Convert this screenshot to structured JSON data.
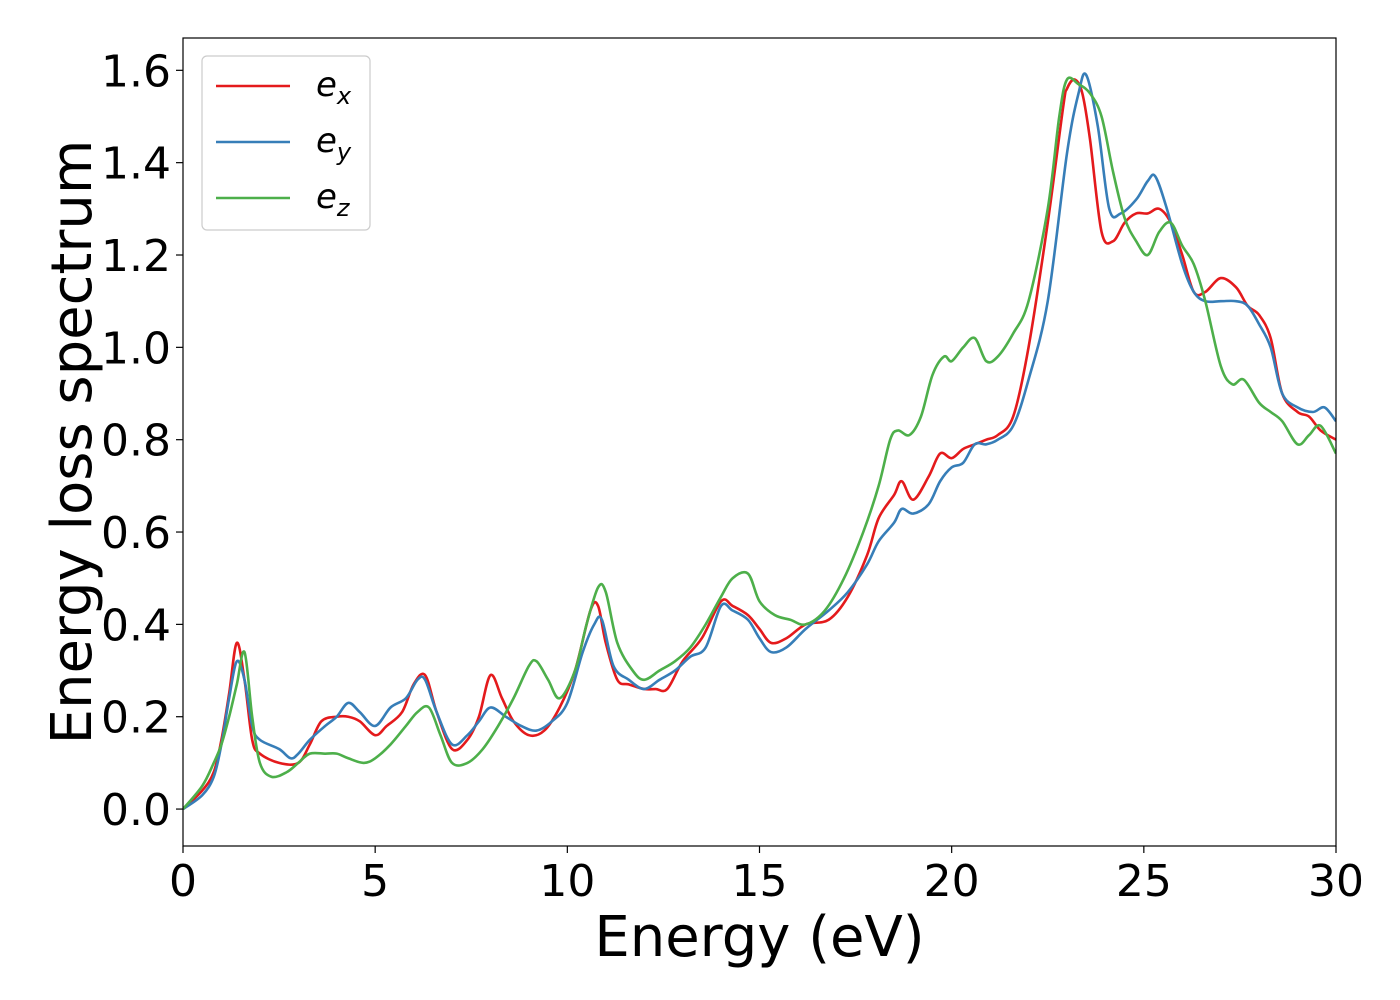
{
  "chart_data": {
    "type": "line",
    "xlabel": "Energy (eV)",
    "ylabel": "Energy loss spectrum",
    "xlim": [
      0,
      30
    ],
    "ylim": [
      -0.08,
      1.67
    ],
    "xticks": [
      0,
      5,
      10,
      15,
      20,
      25,
      30
    ],
    "xtick_labels": [
      "0",
      "5",
      "10",
      "15",
      "20",
      "25",
      "30"
    ],
    "yticks": [
      0.0,
      0.2,
      0.4,
      0.6,
      0.8,
      1.0,
      1.2,
      1.4,
      1.6
    ],
    "ytick_labels": [
      "0.0",
      "0.2",
      "0.4",
      "0.6",
      "0.8",
      "1.0",
      "1.2",
      "1.4",
      "1.6"
    ],
    "grid": false,
    "legend_position": "top-left",
    "series": [
      {
        "name": "e",
        "subscript": "x",
        "color": "#e41a1c",
        "x": [
          0,
          0.5,
          0.8,
          1.0,
          1.2,
          1.4,
          1.6,
          1.8,
          2.0,
          2.5,
          3.0,
          3.3,
          3.6,
          4.0,
          4.3,
          4.6,
          5.0,
          5.3,
          5.7,
          6.0,
          6.3,
          6.6,
          7.0,
          7.4,
          7.7,
          8.0,
          8.3,
          8.6,
          9.0,
          9.4,
          9.8,
          10.2,
          10.6,
          10.8,
          11.0,
          11.3,
          11.6,
          12.0,
          12.3,
          12.6,
          13.0,
          13.5,
          14.0,
          14.3,
          14.7,
          15.0,
          15.3,
          15.7,
          16.2,
          16.8,
          17.3,
          17.8,
          18.1,
          18.5,
          18.7,
          19.0,
          19.4,
          19.7,
          20.0,
          20.3,
          20.6,
          20.9,
          21.2,
          21.6,
          22.0,
          22.5,
          22.9,
          23.0,
          23.2,
          23.4,
          23.6,
          23.9,
          24.2,
          24.5,
          24.8,
          25.1,
          25.4,
          25.7,
          26.0,
          26.3,
          26.6,
          27.0,
          27.4,
          27.7,
          28.0,
          28.3,
          28.6,
          29.0,
          29.3,
          29.6,
          30.0
        ],
        "y": [
          0.0,
          0.04,
          0.08,
          0.15,
          0.25,
          0.36,
          0.28,
          0.15,
          0.12,
          0.1,
          0.1,
          0.14,
          0.19,
          0.2,
          0.2,
          0.19,
          0.16,
          0.18,
          0.21,
          0.27,
          0.29,
          0.21,
          0.13,
          0.15,
          0.2,
          0.29,
          0.24,
          0.19,
          0.16,
          0.17,
          0.22,
          0.3,
          0.43,
          0.44,
          0.36,
          0.28,
          0.27,
          0.26,
          0.26,
          0.26,
          0.32,
          0.37,
          0.45,
          0.44,
          0.42,
          0.39,
          0.36,
          0.37,
          0.4,
          0.41,
          0.46,
          0.55,
          0.63,
          0.68,
          0.71,
          0.67,
          0.72,
          0.77,
          0.76,
          0.78,
          0.79,
          0.8,
          0.81,
          0.85,
          1.0,
          1.27,
          1.52,
          1.56,
          1.58,
          1.55,
          1.45,
          1.25,
          1.23,
          1.27,
          1.29,
          1.29,
          1.3,
          1.27,
          1.2,
          1.12,
          1.12,
          1.15,
          1.13,
          1.09,
          1.07,
          1.02,
          0.9,
          0.86,
          0.85,
          0.82,
          0.8
        ]
      },
      {
        "name": "e",
        "subscript": "y",
        "color": "#377eb8",
        "x": [
          0,
          0.5,
          0.8,
          1.0,
          1.2,
          1.4,
          1.6,
          1.8,
          2.0,
          2.5,
          2.8,
          3.0,
          3.3,
          3.7,
          4.0,
          4.3,
          4.6,
          5.0,
          5.4,
          5.8,
          6.1,
          6.3,
          6.6,
          7.0,
          7.4,
          7.7,
          8.0,
          8.4,
          8.8,
          9.2,
          9.6,
          10.0,
          10.4,
          10.7,
          10.9,
          11.2,
          11.6,
          12.0,
          12.4,
          12.8,
          13.2,
          13.6,
          14.0,
          14.3,
          14.7,
          15.0,
          15.3,
          15.7,
          16.2,
          16.8,
          17.3,
          17.8,
          18.1,
          18.5,
          18.7,
          19.0,
          19.4,
          19.7,
          20.0,
          20.3,
          20.6,
          20.9,
          21.2,
          21.6,
          22.0,
          22.5,
          23.0,
          23.3,
          23.5,
          23.8,
          24.1,
          24.4,
          24.8,
          25.1,
          25.3,
          25.6,
          26.0,
          26.3,
          26.6,
          27.0,
          27.4,
          27.7,
          28.0,
          28.3,
          28.6,
          29.0,
          29.4,
          29.7,
          30.0
        ],
        "y": [
          0.0,
          0.03,
          0.07,
          0.14,
          0.24,
          0.32,
          0.28,
          0.18,
          0.15,
          0.13,
          0.11,
          0.12,
          0.15,
          0.18,
          0.2,
          0.23,
          0.21,
          0.18,
          0.22,
          0.24,
          0.28,
          0.28,
          0.21,
          0.14,
          0.16,
          0.19,
          0.22,
          0.2,
          0.18,
          0.17,
          0.19,
          0.23,
          0.34,
          0.4,
          0.41,
          0.31,
          0.28,
          0.26,
          0.28,
          0.3,
          0.33,
          0.35,
          0.44,
          0.43,
          0.41,
          0.37,
          0.34,
          0.35,
          0.39,
          0.43,
          0.47,
          0.53,
          0.58,
          0.62,
          0.65,
          0.64,
          0.66,
          0.71,
          0.74,
          0.75,
          0.79,
          0.79,
          0.8,
          0.83,
          0.93,
          1.1,
          1.42,
          1.55,
          1.59,
          1.48,
          1.3,
          1.29,
          1.32,
          1.36,
          1.37,
          1.3,
          1.18,
          1.12,
          1.1,
          1.1,
          1.1,
          1.09,
          1.05,
          1.0,
          0.9,
          0.87,
          0.86,
          0.87,
          0.84
        ]
      },
      {
        "name": "e",
        "subscript": "z",
        "color": "#4daf4a",
        "x": [
          0,
          0.5,
          0.8,
          1.0,
          1.2,
          1.4,
          1.6,
          1.8,
          2.0,
          2.3,
          2.7,
          3.0,
          3.3,
          3.7,
          4.0,
          4.3,
          4.7,
          5.0,
          5.4,
          5.8,
          6.1,
          6.4,
          6.7,
          7.0,
          7.4,
          7.8,
          8.2,
          8.6,
          9.0,
          9.2,
          9.5,
          9.8,
          10.2,
          10.5,
          10.8,
          11.0,
          11.3,
          11.7,
          12.0,
          12.4,
          12.8,
          13.2,
          13.6,
          14.0,
          14.3,
          14.7,
          15.0,
          15.4,
          15.8,
          16.2,
          16.7,
          17.2,
          17.7,
          18.1,
          18.4,
          18.6,
          18.9,
          19.2,
          19.5,
          19.8,
          20.0,
          20.3,
          20.6,
          20.9,
          21.2,
          21.6,
          22.0,
          22.5,
          22.8,
          23.0,
          23.3,
          23.6,
          23.9,
          24.2,
          24.5,
          24.8,
          25.1,
          25.4,
          25.7,
          26.0,
          26.3,
          26.6,
          27.0,
          27.3,
          27.6,
          28.0,
          28.3,
          28.6,
          29.0,
          29.3,
          29.6,
          30.0
        ],
        "y": [
          0.0,
          0.05,
          0.1,
          0.14,
          0.2,
          0.27,
          0.34,
          0.2,
          0.1,
          0.07,
          0.08,
          0.1,
          0.12,
          0.12,
          0.12,
          0.11,
          0.1,
          0.11,
          0.14,
          0.18,
          0.21,
          0.22,
          0.16,
          0.1,
          0.1,
          0.13,
          0.18,
          0.24,
          0.31,
          0.32,
          0.28,
          0.24,
          0.3,
          0.4,
          0.48,
          0.47,
          0.36,
          0.3,
          0.28,
          0.3,
          0.32,
          0.35,
          0.4,
          0.46,
          0.5,
          0.51,
          0.45,
          0.42,
          0.41,
          0.4,
          0.43,
          0.5,
          0.6,
          0.7,
          0.8,
          0.82,
          0.81,
          0.85,
          0.94,
          0.98,
          0.97,
          1.0,
          1.02,
          0.97,
          0.98,
          1.03,
          1.1,
          1.3,
          1.5,
          1.58,
          1.57,
          1.55,
          1.5,
          1.38,
          1.28,
          1.23,
          1.2,
          1.25,
          1.27,
          1.22,
          1.18,
          1.1,
          0.96,
          0.92,
          0.93,
          0.88,
          0.86,
          0.84,
          0.79,
          0.81,
          0.83,
          0.77
        ]
      }
    ]
  }
}
